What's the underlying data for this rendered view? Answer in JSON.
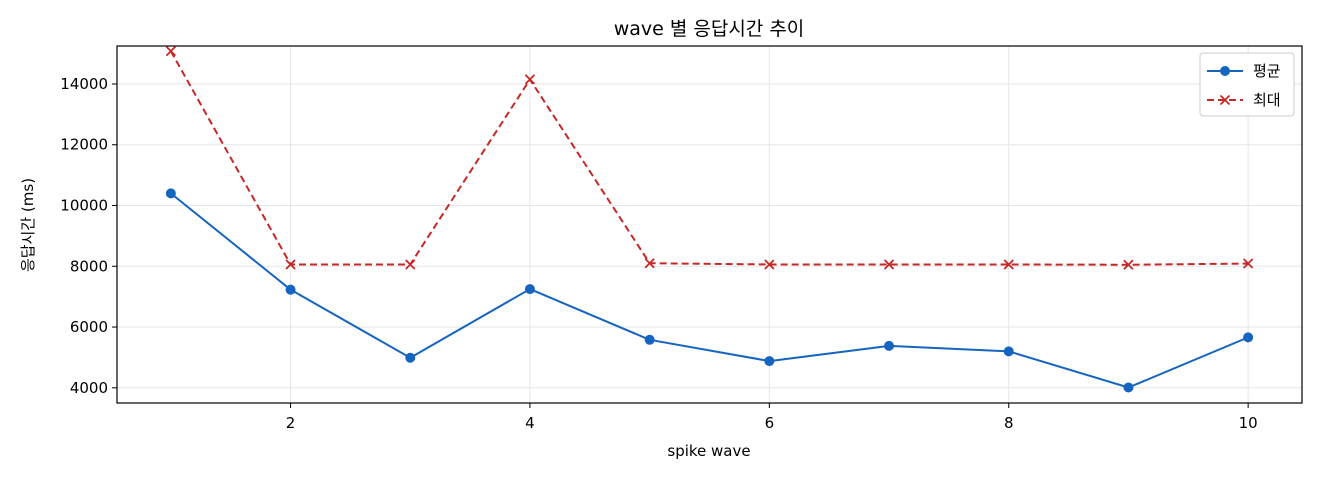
{
  "chart_data": {
    "type": "line",
    "title": "wave 별 응답시간 추이",
    "xlabel": "spike wave",
    "ylabel": "응답시간 (ms)",
    "x": [
      1,
      2,
      3,
      4,
      5,
      6,
      7,
      8,
      9,
      10
    ],
    "xlim": [
      0.55,
      10.45
    ],
    "ylim": [
      3500,
      15250
    ],
    "xticks": [
      2,
      4,
      6,
      8,
      10
    ],
    "yticks": [
      4000,
      6000,
      8000,
      10000,
      12000,
      14000
    ],
    "grid": true,
    "legend_position": "top-right",
    "series": [
      {
        "name": "평균",
        "color": "#1565c0",
        "line_style": "solid",
        "marker": "circle",
        "values": [
          10400,
          7230,
          4990,
          7250,
          5580,
          4880,
          5380,
          5200,
          4010,
          5660
        ]
      },
      {
        "name": "최대",
        "color": "#c62828",
        "line_style": "dashed",
        "marker": "x",
        "values": [
          15080,
          8060,
          8060,
          14150,
          8100,
          8060,
          8060,
          8060,
          8050,
          8090
        ]
      }
    ]
  }
}
